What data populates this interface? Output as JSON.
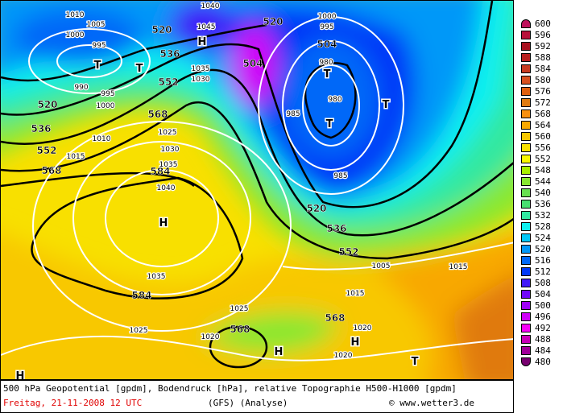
{
  "caption": {
    "title": "500 hPa Geopotential [gpdm], Bodendruck [hPa], relative Topographie H500-H1000 [gpdm]",
    "date": "Freitag, 21-11-2008  12 UTC",
    "model": "(GFS)  (Analyse)",
    "copyright": "© www.wetter3.de"
  },
  "legend": {
    "levels": [
      "600",
      "596",
      "592",
      "588",
      "584",
      "580",
      "576",
      "572",
      "568",
      "564",
      "560",
      "556",
      "552",
      "548",
      "544",
      "540",
      "536",
      "532",
      "528",
      "524",
      "520",
      "516",
      "512",
      "508",
      "504",
      "500",
      "496",
      "492",
      "488",
      "484",
      "480"
    ],
    "colors": [
      "#c0105a",
      "#b8103a",
      "#a8101e",
      "#b82020",
      "#c83a20",
      "#d85020",
      "#e06010",
      "#e07a10",
      "#f89010",
      "#f8a800",
      "#f8c800",
      "#f8e000",
      "#f8f800",
      "#a8f000",
      "#88e830",
      "#68e050",
      "#48e070",
      "#30e8a0",
      "#10f0f0",
      "#00c8f8",
      "#0098f8",
      "#0068f8",
      "#0038f8",
      "#4018f8",
      "#7008f8",
      "#a000f8",
      "#d000f8",
      "#f800f8",
      "#c800b8",
      "#a00098",
      "#780070"
    ]
  },
  "map": {
    "geopotential_labels": [
      "520",
      "536",
      "552",
      "520",
      "536",
      "552",
      "568",
      "568",
      "584",
      "504",
      "520",
      "504",
      "520",
      "536",
      "552",
      "584",
      "568",
      "568"
    ],
    "pressure_labels": [
      "1010",
      "1005",
      "1000",
      "995",
      "1040",
      "1045",
      "1035",
      "1030",
      "1000",
      "995",
      "990",
      "985",
      "980",
      "980",
      "1025",
      "1030",
      "1035",
      "1040",
      "1035",
      "1025",
      "1025",
      "1015",
      "1020",
      "1020",
      "1015",
      "1010",
      "1005",
      "1015",
      "1000",
      "995",
      "985",
      "1020"
    ],
    "pressure_centers": [
      "T",
      "T",
      "T",
      "T",
      "T",
      "H",
      "H",
      "H",
      "H",
      "T",
      "H"
    ]
  }
}
